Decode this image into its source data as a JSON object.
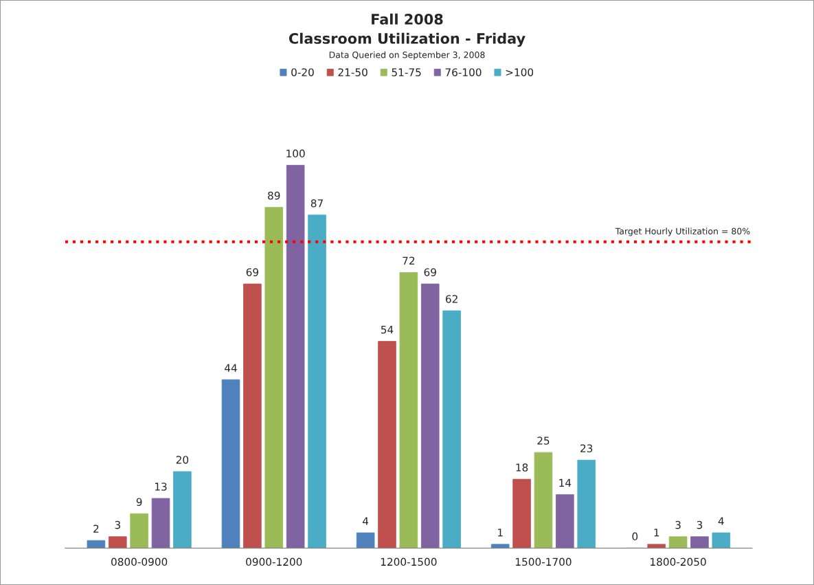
{
  "chart_data": {
    "type": "bar",
    "title": "Fall 2008",
    "subtitle": "Classroom Utilization - Friday",
    "annotations": [
      "Data Queried on September 3, 2008"
    ],
    "categories": [
      "0800-0900",
      "0900-1200",
      "1200-1500",
      "1500-1700",
      "1800-2050"
    ],
    "series": [
      {
        "name": "0-20",
        "color": "#4f81bd",
        "values": [
          2,
          44,
          4,
          1,
          0
        ]
      },
      {
        "name": "21-50",
        "color": "#c0504d",
        "values": [
          3,
          69,
          54,
          18,
          1
        ]
      },
      {
        "name": "51-75",
        "color": "#9bbb59",
        "values": [
          9,
          89,
          72,
          25,
          3
        ]
      },
      {
        "name": "76-100",
        "color": "#8064a2",
        "values": [
          13,
          100,
          69,
          14,
          3
        ]
      },
      {
        "name": ">100",
        "color": "#4bacc6",
        "values": [
          20,
          87,
          62,
          23,
          4
        ]
      }
    ],
    "data_labels": true,
    "ref_lines": [
      {
        "axis": "y",
        "value": 80,
        "label": "Target Hourly Utilization = 80%",
        "color": "#ff0000",
        "line_style": "dotted"
      }
    ],
    "legend": "top",
    "grid": false
  }
}
